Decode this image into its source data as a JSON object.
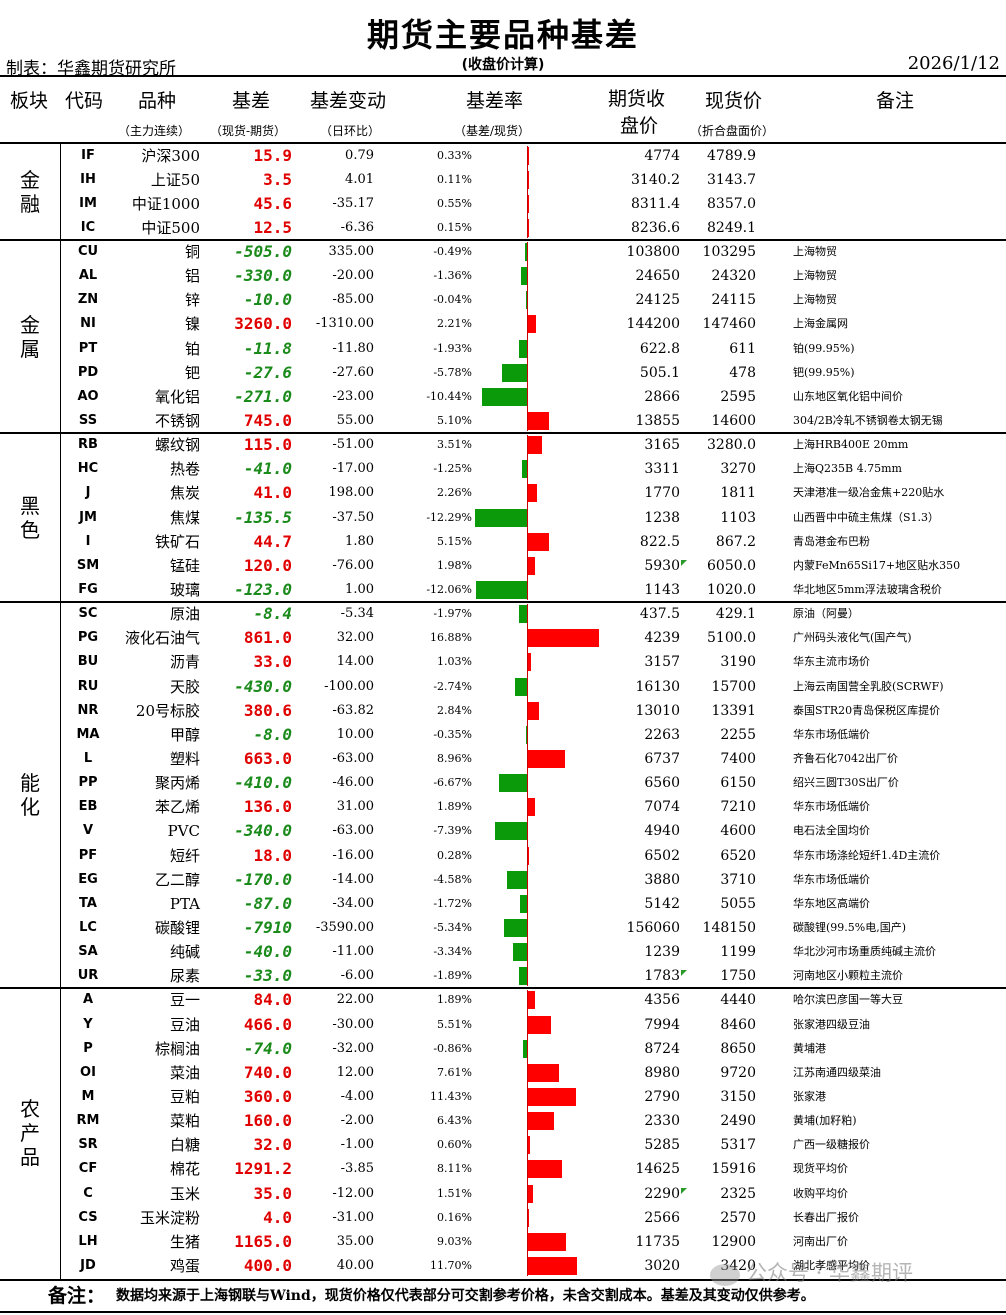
{
  "title": "期货主要品种基差",
  "maker": "制表：华鑫期货研究所",
  "subtitle": "(收盘价计算)",
  "date": "2026/1/12",
  "headers": {
    "sector": "板块",
    "code": "代码",
    "name": "品种",
    "basis": "基差",
    "basis_change": "基差变动",
    "basis_rate": "基差率",
    "futures_close_1": "期货收",
    "futures_close_2": "盘价",
    "spot": "现货价",
    "note": "备注",
    "name_sub": "（主力连续）",
    "basis_sub": "（现货-期货）",
    "change_sub": "（日环比）",
    "rate_sub": "（基差/现货）",
    "spot_sub": "（折合盘面价）"
  },
  "groups": [
    {
      "label": "金融",
      "rows": [
        {
          "code": "IF",
          "name": "沪深300",
          "basis": "15.9",
          "change": "0.79",
          "rate": "0.33%",
          "rate_value": 0.33,
          "futures": "4774",
          "spot": "4789.9",
          "note": ""
        },
        {
          "code": "IH",
          "name": "上证50",
          "basis": "3.5",
          "change": "4.01",
          "rate": "0.11%",
          "rate_value": 0.11,
          "futures": "3140.2",
          "spot": "3143.7",
          "note": ""
        },
        {
          "code": "IM",
          "name": "中证1000",
          "basis": "45.6",
          "change": "-35.17",
          "rate": "0.55%",
          "rate_value": 0.55,
          "futures": "8311.4",
          "spot": "8357.0",
          "note": ""
        },
        {
          "code": "IC",
          "name": "中证500",
          "basis": "12.5",
          "change": "-6.36",
          "rate": "0.15%",
          "rate_value": 0.15,
          "futures": "8236.6",
          "spot": "8249.1",
          "note": ""
        }
      ]
    },
    {
      "label": "金属",
      "rows": [
        {
          "code": "CU",
          "name": "铜",
          "basis": "-505.0",
          "change": "335.00",
          "rate": "-0.49%",
          "rate_value": -0.49,
          "futures": "103800",
          "spot": "103295",
          "note": "上海物贸"
        },
        {
          "code": "AL",
          "name": "铝",
          "basis": "-330.0",
          "change": "-20.00",
          "rate": "-1.36%",
          "rate_value": -1.36,
          "futures": "24650",
          "spot": "24320",
          "note": "上海物贸"
        },
        {
          "code": "ZN",
          "name": "锌",
          "basis": "-10.0",
          "change": "-85.00",
          "rate": "-0.04%",
          "rate_value": -0.04,
          "futures": "24125",
          "spot": "24115",
          "note": "上海物贸"
        },
        {
          "code": "NI",
          "name": "镍",
          "basis": "3260.0",
          "change": "-1310.00",
          "rate": "2.21%",
          "rate_value": 2.21,
          "futures": "144200",
          "spot": "147460",
          "note": "上海金属网"
        },
        {
          "code": "PT",
          "name": "铂",
          "basis": "-11.8",
          "change": "-11.80",
          "rate": "-1.93%",
          "rate_value": -1.93,
          "futures": "622.8",
          "spot": "611",
          "note": "铂(99.95%)"
        },
        {
          "code": "PD",
          "name": "钯",
          "basis": "-27.6",
          "change": "-27.60",
          "rate": "-5.78%",
          "rate_value": -5.78,
          "futures": "505.1",
          "spot": "478",
          "note": "钯(99.95%)"
        },
        {
          "code": "AO",
          "name": "氧化铝",
          "basis": "-271.0",
          "change": "-23.00",
          "rate": "-10.44%",
          "rate_value": -10.44,
          "futures": "2866",
          "spot": "2595",
          "note": "山东地区氧化铝中间价"
        },
        {
          "code": "SS",
          "name": "不锈钢",
          "basis": "745.0",
          "change": "55.00",
          "rate": "5.10%",
          "rate_value": 5.1,
          "futures": "13855",
          "spot": "14600",
          "note": "304/2B冷轧不锈钢卷太钢无锡"
        }
      ]
    },
    {
      "label": "黑色",
      "rows": [
        {
          "code": "RB",
          "name": "螺纹钢",
          "basis": "115.0",
          "change": "-51.00",
          "rate": "3.51%",
          "rate_value": 3.51,
          "futures": "3165",
          "spot": "3280.0",
          "note": "上海HRB400E 20mm"
        },
        {
          "code": "HC",
          "name": "热卷",
          "basis": "-41.0",
          "change": "-17.00",
          "rate": "-1.25%",
          "rate_value": -1.25,
          "futures": "3311",
          "spot": "3270",
          "note": "上海Q235B 4.75mm"
        },
        {
          "code": "J",
          "name": "焦炭",
          "basis": "41.0",
          "change": "198.00",
          "rate": "2.26%",
          "rate_value": 2.26,
          "futures": "1770",
          "spot": "1811",
          "note": "天津港准一级冶金焦+220贴水"
        },
        {
          "code": "JM",
          "name": "焦煤",
          "basis": "-135.5",
          "change": "-37.50",
          "rate": "-12.29%",
          "rate_value": -12.29,
          "futures": "1238",
          "spot": "1103",
          "note": "山西晋中中硫主焦煤（S1.3）"
        },
        {
          "code": "I",
          "name": "铁矿石",
          "basis": "44.7",
          "change": "1.80",
          "rate": "5.15%",
          "rate_value": 5.15,
          "futures": "822.5",
          "spot": "867.2",
          "note": "青岛港金布巴粉"
        },
        {
          "code": "SM",
          "name": "锰硅",
          "basis": "120.0",
          "change": "-76.00",
          "rate": "1.98%",
          "rate_value": 1.98,
          "futures": "5930",
          "spot": "6050.0",
          "note": "内蒙FeMn65Si17+地区贴水350"
        },
        {
          "code": "FG",
          "name": "玻璃",
          "basis": "-123.0",
          "change": "1.00",
          "rate": "-12.06%",
          "rate_value": -12.06,
          "futures": "1143",
          "spot": "1020.0",
          "note": "华北地区5mm浮法玻璃含税价"
        }
      ]
    },
    {
      "label": "能化",
      "rows": [
        {
          "code": "SC",
          "name": "原油",
          "basis": "-8.4",
          "change": "-5.34",
          "rate": "-1.97%",
          "rate_value": -1.97,
          "futures": "437.5",
          "spot": "429.1",
          "note": "原油（阿曼）"
        },
        {
          "code": "PG",
          "name": "液化石油气",
          "basis": "861.0",
          "change": "32.00",
          "rate": "16.88%",
          "rate_value": 16.88,
          "futures": "4239",
          "spot": "5100.0",
          "note": "广州码头液化气(国产气)"
        },
        {
          "code": "BU",
          "name": "沥青",
          "basis": "33.0",
          "change": "14.00",
          "rate": "1.03%",
          "rate_value": 1.03,
          "futures": "3157",
          "spot": "3190",
          "note": "华东主流市场价"
        },
        {
          "code": "RU",
          "name": "天胶",
          "basis": "-430.0",
          "change": "-100.00",
          "rate": "-2.74%",
          "rate_value": -2.74,
          "futures": "16130",
          "spot": "15700",
          "note": "上海云南国营全乳胶(SCRWF)"
        },
        {
          "code": "NR",
          "name": "20号标胶",
          "basis": "380.6",
          "change": "-63.82",
          "rate": "2.84%",
          "rate_value": 2.84,
          "futures": "13010",
          "spot": "13391",
          "note": "泰国STR20青岛保税区库提价"
        },
        {
          "code": "MA",
          "name": "甲醇",
          "basis": "-8.0",
          "change": "10.00",
          "rate": "-0.35%",
          "rate_value": -0.35,
          "futures": "2263",
          "spot": "2255",
          "note": "华东市场低端价"
        },
        {
          "code": "L",
          "name": "塑料",
          "basis": "663.0",
          "change": "-63.00",
          "rate": "8.96%",
          "rate_value": 8.96,
          "futures": "6737",
          "spot": "7400",
          "note": "齐鲁石化7042出厂价"
        },
        {
          "code": "PP",
          "name": "聚丙烯",
          "basis": "-410.0",
          "change": "-46.00",
          "rate": "-6.67%",
          "rate_value": -6.67,
          "futures": "6560",
          "spot": "6150",
          "note": "绍兴三圆T30S出厂价"
        },
        {
          "code": "EB",
          "name": "苯乙烯",
          "basis": "136.0",
          "change": "31.00",
          "rate": "1.89%",
          "rate_value": 1.89,
          "futures": "7074",
          "spot": "7210",
          "note": "华东市场低端价"
        },
        {
          "code": "V",
          "name": "PVC",
          "basis": "-340.0",
          "change": "-63.00",
          "rate": "-7.39%",
          "rate_value": -7.39,
          "futures": "4940",
          "spot": "4600",
          "note": "电石法全国均价"
        },
        {
          "code": "PF",
          "name": "短纤",
          "basis": "18.0",
          "change": "-16.00",
          "rate": "0.28%",
          "rate_value": 0.28,
          "futures": "6502",
          "spot": "6520",
          "note": "华东市场涤纶短纤1.4D主流价"
        },
        {
          "code": "EG",
          "name": "乙二醇",
          "basis": "-170.0",
          "change": "-14.00",
          "rate": "-4.58%",
          "rate_value": -4.58,
          "futures": "3880",
          "spot": "3710",
          "note": "华东市场低端价"
        },
        {
          "code": "TA",
          "name": "PTA",
          "basis": "-87.0",
          "change": "-34.00",
          "rate": "-1.72%",
          "rate_value": -1.72,
          "futures": "5142",
          "spot": "5055",
          "note": "华东地区高端价"
        },
        {
          "code": "LC",
          "name": "碳酸锂",
          "basis": "-7910",
          "change": "-3590.00",
          "rate": "-5.34%",
          "rate_value": -5.34,
          "futures": "156060",
          "spot": "148150",
          "note": "碳酸锂(99.5%电,国产)"
        },
        {
          "code": "SA",
          "name": "纯碱",
          "basis": "-40.0",
          "change": "-11.00",
          "rate": "-3.34%",
          "rate_value": -3.34,
          "futures": "1239",
          "spot": "1199",
          "note": "华北沙河市场重质纯碱主流价"
        },
        {
          "code": "UR",
          "name": "尿素",
          "basis": "-33.0",
          "change": "-6.00",
          "rate": "-1.89%",
          "rate_value": -1.89,
          "futures": "1783",
          "spot": "1750",
          "note": "河南地区小颗粒主流价"
        }
      ]
    },
    {
      "label": "农产品",
      "rows": [
        {
          "code": "A",
          "name": "豆一",
          "basis": "84.0",
          "change": "22.00",
          "rate": "1.89%",
          "rate_value": 1.89,
          "futures": "4356",
          "spot": "4440",
          "note": "哈尔滨巴彦国一等大豆"
        },
        {
          "code": "Y",
          "name": "豆油",
          "basis": "466.0",
          "change": "-30.00",
          "rate": "5.51%",
          "rate_value": 5.51,
          "futures": "7994",
          "spot": "8460",
          "note": "张家港四级豆油"
        },
        {
          "code": "P",
          "name": "棕榈油",
          "basis": "-74.0",
          "change": "-32.00",
          "rate": "-0.86%",
          "rate_value": -0.86,
          "futures": "8724",
          "spot": "8650",
          "note": "黄埔港"
        },
        {
          "code": "OI",
          "name": "菜油",
          "basis": "740.0",
          "change": "12.00",
          "rate": "7.61%",
          "rate_value": 7.61,
          "futures": "8980",
          "spot": "9720",
          "note": "江苏南通四级菜油"
        },
        {
          "code": "M",
          "name": "豆粕",
          "basis": "360.0",
          "change": "-4.00",
          "rate": "11.43%",
          "rate_value": 11.43,
          "futures": "2790",
          "spot": "3150",
          "note": "张家港"
        },
        {
          "code": "RM",
          "name": "菜粕",
          "basis": "160.0",
          "change": "-2.00",
          "rate": "6.43%",
          "rate_value": 6.43,
          "futures": "2330",
          "spot": "2490",
          "note": "黄埔(加籽粕)"
        },
        {
          "code": "SR",
          "name": "白糖",
          "basis": "32.0",
          "change": "-1.00",
          "rate": "0.60%",
          "rate_value": 0.6,
          "futures": "5285",
          "spot": "5317",
          "note": "广西一级糖报价"
        },
        {
          "code": "CF",
          "name": "棉花",
          "basis": "1291.2",
          "change": "-3.85",
          "rate": "8.11%",
          "rate_value": 8.11,
          "futures": "14625",
          "spot": "15916",
          "note": "现货平均价"
        },
        {
          "code": "C",
          "name": "玉米",
          "basis": "35.0",
          "change": "-12.00",
          "rate": "1.51%",
          "rate_value": 1.51,
          "futures": "2290",
          "spot": "2325",
          "note": "收购平均价"
        },
        {
          "code": "CS",
          "name": "玉米淀粉",
          "basis": "4.0",
          "change": "-31.00",
          "rate": "0.16%",
          "rate_value": 0.16,
          "futures": "2566",
          "spot": "2570",
          "note": "长春出厂报价"
        },
        {
          "code": "LH",
          "name": "生猪",
          "basis": "1165.0",
          "change": "35.00",
          "rate": "9.03%",
          "rate_value": 9.03,
          "futures": "11735",
          "spot": "12900",
          "note": "河南出厂价"
        },
        {
          "code": "JD",
          "name": "鸡蛋",
          "basis": "400.0",
          "change": "40.00",
          "rate": "11.70%",
          "rate_value": 11.7,
          "futures": "3020",
          "spot": "3420",
          "note": "湖北孝感平均价"
        }
      ]
    }
  ],
  "footer": {
    "label": "备注：",
    "text": "数据均来源于上海钢联与Wind，现货价格仅代表部分可交割参考价格，未含交割成本。基差及其变动仅供参考。"
  },
  "watermark": "公众号 · 华鑫期评",
  "colors": {
    "positive": "#ff0000",
    "negative": "#0a9a0a"
  }
}
